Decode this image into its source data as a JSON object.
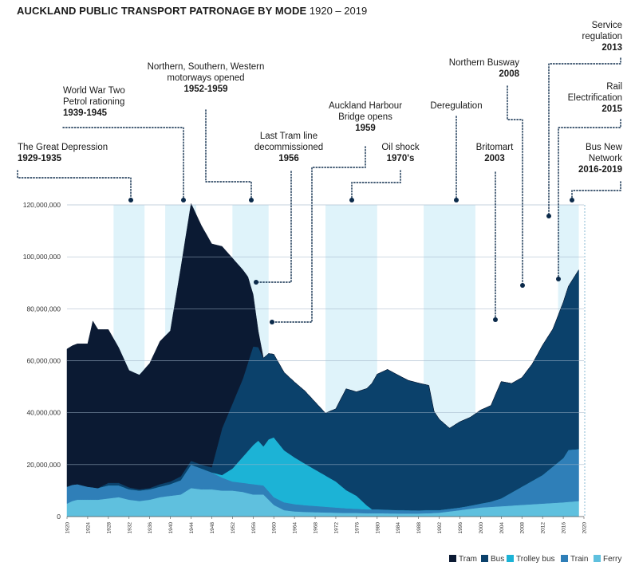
{
  "title": {
    "main": "AUCKLAND PUBLIC TRANSPORT PATRONAGE BY MODE",
    "years": "1920 – 2019"
  },
  "colors": {
    "tram": "#0b1a33",
    "bus": "#0b416b",
    "trolley_bus": "#1cb3d6",
    "train": "#2f7fb8",
    "ferry": "#5fc0de",
    "band": "#dff3fa",
    "grid": "#9fb3c8",
    "dot": "#0b2a4a"
  },
  "chart_data": {
    "type": "area",
    "stacked": true,
    "title": "AUCKLAND PUBLIC TRANSPORT PATRONAGE BY MODE 1920 – 2019",
    "xlabel": "",
    "ylabel": "",
    "xlim": [
      1920,
      2020
    ],
    "ylim": [
      0,
      120000000
    ],
    "yticks": [
      0,
      20000000,
      40000000,
      60000000,
      80000000,
      100000000,
      120000000
    ],
    "ytick_labels": [
      "0",
      "20,000,000",
      "40,000,000",
      "60,000,000",
      "80,000,000",
      "100,000,000",
      "120,000,000"
    ],
    "xticks": [
      1920,
      1924,
      1928,
      1932,
      1936,
      1940,
      1944,
      1948,
      1952,
      1956,
      1960,
      1964,
      1968,
      1972,
      1976,
      1980,
      1984,
      1988,
      1992,
      1996,
      2000,
      2004,
      2008,
      2012,
      2016,
      2020
    ],
    "xtick_labels": [
      "1920",
      "1924",
      "1928",
      "1932",
      "1936",
      "1940",
      "1944",
      "1948",
      "1952",
      "1956",
      "1960",
      "1964",
      "1968",
      "1972",
      "1976",
      "1980",
      "1984",
      "1988",
      "1992",
      "1996",
      "2000",
      "2004",
      "2008",
      "2012",
      "2016",
      "2020"
    ],
    "grid": true,
    "legend_position": "bottom-right",
    "series": [
      {
        "name": "Ferry",
        "key": "ferry",
        "points": [
          [
            1920,
            5000000
          ],
          [
            1921,
            6000000
          ],
          [
            1922,
            6500000
          ],
          [
            1924,
            6500000
          ],
          [
            1926,
            6500000
          ],
          [
            1928,
            7000000
          ],
          [
            1930,
            7500000
          ],
          [
            1932,
            6500000
          ],
          [
            1934,
            6000000
          ],
          [
            1936,
            6500000
          ],
          [
            1938,
            7500000
          ],
          [
            1940,
            8000000
          ],
          [
            1942,
            8500000
          ],
          [
            1944,
            11000000
          ],
          [
            1946,
            10500000
          ],
          [
            1948,
            10500000
          ],
          [
            1950,
            10000000
          ],
          [
            1952,
            10000000
          ],
          [
            1954,
            9500000
          ],
          [
            1956,
            8500000
          ],
          [
            1958,
            8500000
          ],
          [
            1960,
            4500000
          ],
          [
            1962,
            2500000
          ],
          [
            1964,
            2000000
          ],
          [
            1966,
            1800000
          ],
          [
            1968,
            1700000
          ],
          [
            1970,
            1600000
          ],
          [
            1972,
            1500000
          ],
          [
            1974,
            1400000
          ],
          [
            1976,
            1400000
          ],
          [
            1978,
            1300000
          ],
          [
            1980,
            1300000
          ],
          [
            1984,
            1200000
          ],
          [
            1988,
            1200000
          ],
          [
            1990,
            1300000
          ],
          [
            1992,
            1500000
          ],
          [
            1994,
            2000000
          ],
          [
            1996,
            2500000
          ],
          [
            1998,
            3000000
          ],
          [
            2000,
            3500000
          ],
          [
            2004,
            4000000
          ],
          [
            2008,
            4500000
          ],
          [
            2012,
            5000000
          ],
          [
            2016,
            5500000
          ],
          [
            2019,
            6000000
          ]
        ]
      },
      {
        "name": "Train",
        "key": "train",
        "points": [
          [
            1920,
            6500000
          ],
          [
            1922,
            6000000
          ],
          [
            1924,
            5000000
          ],
          [
            1926,
            4500000
          ],
          [
            1928,
            5000000
          ],
          [
            1930,
            4500000
          ],
          [
            1932,
            4000000
          ],
          [
            1934,
            4000000
          ],
          [
            1936,
            4000000
          ],
          [
            1938,
            4000000
          ],
          [
            1940,
            4500000
          ],
          [
            1942,
            5500000
          ],
          [
            1944,
            9000000
          ],
          [
            1946,
            8000000
          ],
          [
            1948,
            6500000
          ],
          [
            1950,
            5000000
          ],
          [
            1952,
            3500000
          ],
          [
            1954,
            3500000
          ],
          [
            1956,
            4000000
          ],
          [
            1958,
            3500000
          ],
          [
            1960,
            3000000
          ],
          [
            1962,
            3000000
          ],
          [
            1964,
            2800000
          ],
          [
            1966,
            2600000
          ],
          [
            1968,
            2400000
          ],
          [
            1970,
            2200000
          ],
          [
            1972,
            2000000
          ],
          [
            1974,
            1800000
          ],
          [
            1976,
            1600000
          ],
          [
            1978,
            1500000
          ],
          [
            1980,
            1500000
          ],
          [
            1984,
            1300000
          ],
          [
            1988,
            1200000
          ],
          [
            1990,
            1200000
          ],
          [
            1992,
            1000000
          ],
          [
            1994,
            1000000
          ],
          [
            1996,
            1000000
          ],
          [
            1998,
            1200000
          ],
          [
            2000,
            1500000
          ],
          [
            2002,
            2000000
          ],
          [
            2004,
            3000000
          ],
          [
            2006,
            5000000
          ],
          [
            2008,
            7000000
          ],
          [
            2010,
            9000000
          ],
          [
            2012,
            11000000
          ],
          [
            2014,
            14000000
          ],
          [
            2016,
            17000000
          ],
          [
            2017,
            20000000
          ],
          [
            2019,
            20000000
          ]
        ]
      },
      {
        "name": "Trolley bus",
        "key": "trolley_bus",
        "points": [
          [
            1920,
            0
          ],
          [
            1948,
            0
          ],
          [
            1950,
            1000000
          ],
          [
            1952,
            5000000
          ],
          [
            1954,
            10000000
          ],
          [
            1956,
            15000000
          ],
          [
            1957,
            17000000
          ],
          [
            1958,
            15000000
          ],
          [
            1959,
            20000000
          ],
          [
            1960,
            23000000
          ],
          [
            1962,
            20000000
          ],
          [
            1964,
            18000000
          ],
          [
            1966,
            16000000
          ],
          [
            1968,
            14000000
          ],
          [
            1970,
            12000000
          ],
          [
            1972,
            10000000
          ],
          [
            1974,
            7000000
          ],
          [
            1976,
            5000000
          ],
          [
            1978,
            1500000
          ],
          [
            1979,
            0
          ],
          [
            2019,
            0
          ]
        ]
      },
      {
        "name": "Bus",
        "key": "bus",
        "points": [
          [
            1920,
            0
          ],
          [
            1926,
            0
          ],
          [
            1928,
            1000000
          ],
          [
            1930,
            1000000
          ],
          [
            1934,
            500000
          ],
          [
            1936,
            500000
          ],
          [
            1938,
            1000000
          ],
          [
            1940,
            1000000
          ],
          [
            1942,
            1500000
          ],
          [
            1944,
            1500000
          ],
          [
            1946,
            1500000
          ],
          [
            1948,
            2000000
          ],
          [
            1950,
            18000000
          ],
          [
            1952,
            25000000
          ],
          [
            1954,
            30000000
          ],
          [
            1956,
            38000000
          ],
          [
            1958,
            34000000
          ],
          [
            1960,
            32000000
          ],
          [
            1962,
            30000000
          ],
          [
            1964,
            29000000
          ],
          [
            1966,
            28000000
          ],
          [
            1968,
            26000000
          ],
          [
            1970,
            24000000
          ],
          [
            1972,
            28000000
          ],
          [
            1974,
            39000000
          ],
          [
            1976,
            40000000
          ],
          [
            1978,
            45000000
          ],
          [
            1980,
            52000000
          ],
          [
            1982,
            54000000
          ],
          [
            1984,
            52000000
          ],
          [
            1986,
            50000000
          ],
          [
            1988,
            49000000
          ],
          [
            1990,
            48000000
          ],
          [
            1991,
            38000000
          ],
          [
            1992,
            35000000
          ],
          [
            1994,
            31000000
          ],
          [
            1996,
            33000000
          ],
          [
            1998,
            34000000
          ],
          [
            2000,
            36000000
          ],
          [
            2002,
            37000000
          ],
          [
            2004,
            45000000
          ],
          [
            2006,
            42000000
          ],
          [
            2008,
            42000000
          ],
          [
            2010,
            45000000
          ],
          [
            2012,
            50000000
          ],
          [
            2014,
            53000000
          ],
          [
            2016,
            60000000
          ],
          [
            2017,
            63000000
          ],
          [
            2019,
            69000000
          ]
        ]
      },
      {
        "name": "Tram",
        "key": "tram",
        "points": [
          [
            1920,
            53000000
          ],
          [
            1922,
            54000000
          ],
          [
            1924,
            55000000
          ],
          [
            1925,
            64000000
          ],
          [
            1926,
            61000000
          ],
          [
            1928,
            59000000
          ],
          [
            1930,
            52000000
          ],
          [
            1932,
            45000000
          ],
          [
            1934,
            44000000
          ],
          [
            1936,
            48000000
          ],
          [
            1938,
            55000000
          ],
          [
            1940,
            58000000
          ],
          [
            1942,
            80000000
          ],
          [
            1944,
            99000000
          ],
          [
            1946,
            92000000
          ],
          [
            1948,
            86000000
          ],
          [
            1950,
            70000000
          ],
          [
            1952,
            56000000
          ],
          [
            1954,
            42000000
          ],
          [
            1955,
            33000000
          ],
          [
            1956,
            20000000
          ],
          [
            1957,
            6000000
          ],
          [
            1958,
            0
          ],
          [
            2019,
            0
          ]
        ]
      }
    ],
    "totals_note": "",
    "shaded_bands": [
      {
        "from": 1929,
        "to": 1935
      },
      {
        "from": 1939,
        "to": 1945
      },
      {
        "from": 1952,
        "to": 1959
      },
      {
        "from": 1970,
        "to": 1980
      },
      {
        "from": 1989,
        "to": 1999
      },
      {
        "from": 2015,
        "to": 2019
      }
    ],
    "annotations": [
      {
        "id": "great-depression",
        "lines": [
          "The Great Depression"
        ],
        "year": "1929-1935",
        "anchor": "right"
      },
      {
        "id": "ww2",
        "lines": [
          "World War Two",
          "Petrol rationing"
        ],
        "year": "1939-1945",
        "anchor": "left"
      },
      {
        "id": "motorways",
        "lines": [
          "Northern, Southern, Western",
          "motorways opened"
        ],
        "year": "1952-1959",
        "anchor": "middle"
      },
      {
        "id": "last-tram",
        "lines": [
          "Last Tram line",
          "decommissioned"
        ],
        "year": "1956",
        "anchor": "middle"
      },
      {
        "id": "harbour-bridge",
        "lines": [
          "Auckland Harbour",
          "Bridge opens"
        ],
        "year": "1959",
        "anchor": "middle"
      },
      {
        "id": "oil-shock",
        "lines": [
          "Oil shock"
        ],
        "year": "1970's",
        "anchor": "middle"
      },
      {
        "id": "deregulation",
        "lines": [
          "Deregulation"
        ],
        "year": "",
        "anchor": "middle"
      },
      {
        "id": "britomart",
        "lines": [
          "Britomart"
        ],
        "year": "2003",
        "anchor": "middle"
      },
      {
        "id": "northern-busway",
        "lines": [
          "Northern Busway"
        ],
        "year": "2008",
        "anchor": "end"
      },
      {
        "id": "service-regulation",
        "lines": [
          "Service",
          "regulation"
        ],
        "year": "2013",
        "anchor": "end"
      },
      {
        "id": "rail-electrification",
        "lines": [
          "Rail",
          "Electrification"
        ],
        "year": "2015",
        "anchor": "end"
      },
      {
        "id": "bus-new-network",
        "lines": [
          "Bus New",
          "Network"
        ],
        "year": "2016-2019",
        "anchor": "end"
      }
    ],
    "legend": [
      {
        "key": "tram",
        "label": "Tram"
      },
      {
        "key": "bus",
        "label": "Bus"
      },
      {
        "key": "trolley_bus",
        "label": "Trolley bus"
      },
      {
        "key": "train",
        "label": "Train"
      },
      {
        "key": "ferry",
        "label": "Ferry"
      }
    ]
  }
}
